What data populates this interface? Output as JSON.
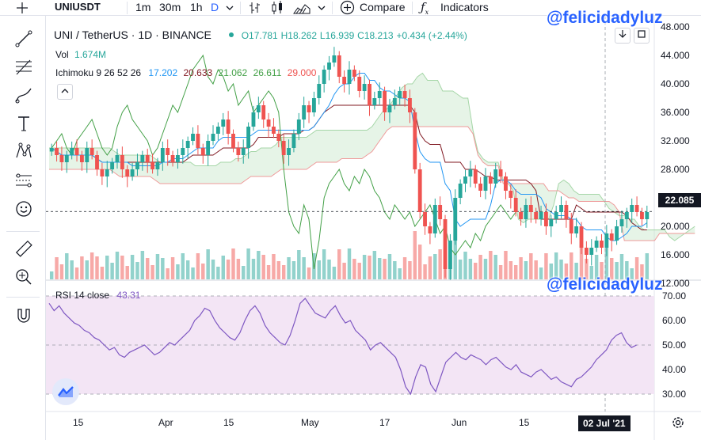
{
  "toolbar": {
    "symbol": "UNIUSDT",
    "intervals": [
      "1m",
      "30m",
      "1h",
      "D"
    ],
    "active_interval": "D",
    "compare_label": "Compare",
    "indicators_label": "Indicators",
    "add_icon": "plus-circle-icon",
    "chart_type_icons": [
      "bars-icon",
      "candles-icon",
      "area-icon"
    ]
  },
  "watermark": "@felicidadyluz",
  "legend": {
    "title": "UNI / TetherUS · 1D · BINANCE",
    "o": "O17.781",
    "h": "H18.262",
    "l": "L16.939",
    "c": "C18.213",
    "chg": "+0.434 (+2.44%)",
    "vol_label": "Vol",
    "vol_value": "1.674M",
    "ichi_label": "Ichimoku 9 26 52 26",
    "ichi_values": [
      "17.202",
      "20.633",
      "21.062",
      "26.611",
      "29.000"
    ],
    "rsi_label": "RSI 14 close",
    "rsi_value": "43.31"
  },
  "price_axis": [
    "48.000",
    "44.000",
    "40.000",
    "36.000",
    "32.000",
    "28.000",
    "24.000",
    "20.000",
    "16.000",
    "12.000"
  ],
  "current_price": "22.085",
  "rsi_axis": [
    "70.00",
    "60.00",
    "50.00",
    "40.00",
    "30.00"
  ],
  "time_axis": [
    "15",
    "Apr",
    "15",
    "May",
    "17",
    "Jun",
    "15",
    "02 Jul '21"
  ],
  "colors": {
    "up": "#26a69a",
    "down": "#ef5350",
    "tenkan": "#2196f3",
    "kijun": "#801922",
    "lagging": "#43a047",
    "span_a": "#a5d6a7",
    "span_b": "#ef9a9a",
    "rsi": "#7e57c2",
    "rsi_band": "#f3e5f5"
  },
  "chart_data": {
    "type": "candlestick",
    "title": "UNI / TetherUS · 1D · BINANCE",
    "ylim": [
      10,
      48
    ],
    "candles_approx_close": [
      31,
      30,
      29,
      30,
      31,
      30,
      29,
      31,
      30,
      28,
      27,
      28,
      29,
      30,
      28,
      27,
      28,
      29,
      30,
      29,
      28,
      29,
      31,
      30,
      29,
      30,
      31,
      32,
      33,
      31,
      30,
      32,
      33,
      34,
      35,
      33,
      31,
      30,
      31,
      34,
      36,
      37,
      35,
      34,
      33,
      32,
      30,
      31,
      33,
      35,
      37,
      36,
      38,
      40,
      42,
      43,
      44,
      41,
      40,
      42,
      41,
      39,
      40,
      37,
      38,
      39,
      36,
      37,
      38,
      39,
      38,
      36,
      28,
      22,
      20,
      19,
      23,
      21,
      14,
      18,
      24,
      26,
      27,
      28,
      26,
      25,
      27,
      26,
      28,
      27,
      25,
      24,
      22,
      21,
      23,
      22,
      21,
      22,
      20,
      21,
      22,
      23,
      21,
      19,
      20,
      17,
      16,
      17,
      18,
      17,
      19,
      18,
      20,
      21,
      22,
      23,
      22,
      21,
      22
    ],
    "rsi_values_approx": [
      67,
      64,
      66,
      63,
      61,
      59,
      58,
      56,
      55,
      53,
      52,
      50,
      48,
      49,
      46,
      45,
      47,
      48,
      49,
      50,
      48,
      46,
      47,
      49,
      51,
      50,
      52,
      54,
      56,
      60,
      62,
      65,
      64,
      60,
      57,
      55,
      53,
      52,
      55,
      60,
      64,
      66,
      63,
      58,
      55,
      53,
      51,
      50,
      54,
      60,
      67,
      69,
      66,
      63,
      62,
      61,
      64,
      66,
      62,
      59,
      60,
      56,
      54,
      52,
      48,
      50,
      51,
      49,
      47,
      45,
      40,
      33,
      30,
      37,
      42,
      41,
      34,
      31,
      37,
      43,
      45,
      47,
      45,
      44,
      46,
      45,
      44,
      42,
      44,
      45,
      43,
      41,
      40,
      42,
      39,
      38,
      37,
      39,
      40,
      38,
      36,
      37,
      35,
      34,
      33,
      36,
      37,
      39,
      41,
      44,
      46,
      48,
      52,
      54,
      55,
      51,
      49,
      50
    ]
  }
}
